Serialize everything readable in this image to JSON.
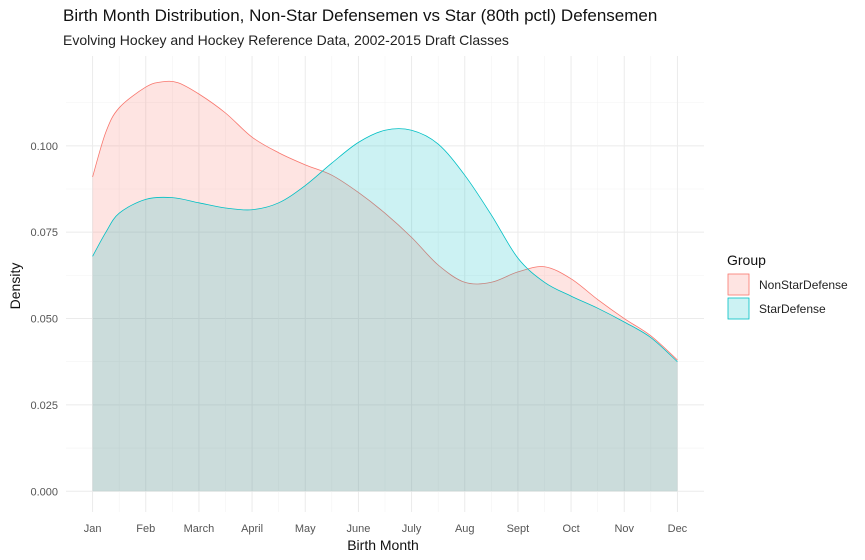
{
  "chart_data": {
    "type": "area",
    "title": "Birth Month Distribution, Non-Star Defensemen vs Star (80th pctl) Defensemen",
    "subtitle": "Evolving Hockey and Hockey Reference Data, 2002-2015 Draft Classes",
    "xlabel": "Birth Month",
    "ylabel": "Density",
    "x_tick_labels": [
      "Jan",
      "Feb",
      "March",
      "April",
      "May",
      "June",
      "July",
      "Aug",
      "Sept",
      "Oct",
      "Nov",
      "Dec"
    ],
    "xlim": [
      0.5,
      12.5
    ],
    "ylim": [
      -0.006,
      0.126
    ],
    "y_ticks": [
      0.0,
      0.025,
      0.05,
      0.075,
      0.1
    ],
    "y_tick_labels": [
      "0.000",
      "0.025",
      "0.050",
      "0.075",
      "0.100"
    ],
    "grid": true,
    "legend": {
      "title": "Group",
      "position": "right"
    },
    "series": [
      {
        "name": "NonStarDefense",
        "color": "#F8766D",
        "x": [
          1,
          1.25,
          1.5,
          2,
          2.3,
          2.6,
          3,
          3.5,
          4,
          4.5,
          5,
          5.5,
          6,
          6.5,
          7,
          7.5,
          8,
          8.5,
          9,
          9.5,
          10,
          10.5,
          11,
          11.5,
          12
        ],
        "values": [
          0.091,
          0.104,
          0.111,
          0.117,
          0.1185,
          0.1183,
          0.115,
          0.1095,
          0.1025,
          0.098,
          0.0945,
          0.0915,
          0.0865,
          0.0805,
          0.0735,
          0.0655,
          0.0605,
          0.0605,
          0.0635,
          0.065,
          0.0615,
          0.0555,
          0.05,
          0.045,
          0.038
        ]
      },
      {
        "name": "StarDefense",
        "color": "#00BFC4",
        "x": [
          1,
          1.25,
          1.5,
          2,
          2.5,
          3,
          3.5,
          4,
          4.5,
          5,
          5.5,
          6,
          6.5,
          7,
          7.5,
          8,
          8.5,
          9,
          9.5,
          10,
          10.5,
          11,
          11.5,
          12
        ],
        "values": [
          0.068,
          0.075,
          0.0805,
          0.0845,
          0.085,
          0.0835,
          0.082,
          0.0815,
          0.0835,
          0.0885,
          0.095,
          0.101,
          0.1045,
          0.1045,
          0.1005,
          0.0915,
          0.08,
          0.0675,
          0.0605,
          0.0565,
          0.053,
          0.049,
          0.0445,
          0.0375
        ]
      }
    ]
  }
}
